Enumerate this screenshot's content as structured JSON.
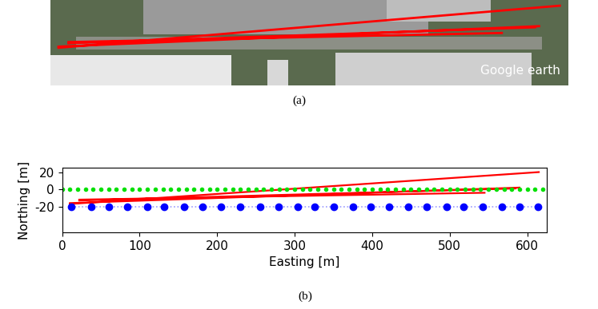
{
  "chart_data": [
    {
      "type": "image",
      "caption": "(a)",
      "watermark": "Google earth"
    },
    {
      "type": "line",
      "caption": "(b)",
      "x_label": "Easting [m]",
      "y_label": "Northing [m]",
      "xlim": [
        0,
        625
      ],
      "xticks": [
        0,
        100,
        200,
        300,
        400,
        500,
        600
      ],
      "ylim": [
        -50,
        25
      ],
      "yticks": [
        -20,
        0,
        20
      ],
      "grid": false,
      "series": [
        {
          "type": "line",
          "color": "#ff0000",
          "line_style": "solid",
          "x": [
            10,
            615,
            null,
            10,
            590,
            null,
            22,
            585,
            null,
            22,
            545
          ],
          "y": [
            -17,
            20,
            null,
            -16,
            2,
            null,
            -13,
            1,
            null,
            -12,
            -4
          ]
        },
        {
          "type": "scatter",
          "color": "#00e000",
          "marker": "o",
          "x": [
            0,
            10,
            20,
            30,
            40,
            50,
            60,
            70,
            80,
            90,
            100,
            110,
            120,
            130,
            140,
            150,
            160,
            170,
            180,
            190,
            200,
            210,
            220,
            230,
            240,
            250,
            260,
            270,
            280,
            290,
            300,
            310,
            320,
            330,
            340,
            350,
            360,
            370,
            380,
            390,
            400,
            410,
            420,
            430,
            440,
            450,
            460,
            470,
            480,
            490,
            500,
            510,
            520,
            530,
            540,
            550,
            560,
            570,
            580,
            590,
            600,
            610,
            620
          ],
          "y": [
            0,
            0,
            0,
            0,
            0,
            0,
            0,
            0,
            0,
            0,
            0,
            0,
            0,
            0,
            0,
            0,
            0,
            0,
            0,
            0,
            0,
            0,
            0,
            0,
            0,
            0,
            0,
            0,
            0,
            0,
            0,
            0,
            0,
            0,
            0,
            0,
            0,
            0,
            0,
            0,
            0,
            0,
            0,
            0,
            0,
            0,
            0,
            0,
            0,
            0,
            0,
            0,
            0,
            0,
            0,
            0,
            0,
            0,
            0,
            0,
            0,
            0,
            0
          ]
        },
        {
          "type": "line",
          "color": "#0000ff",
          "marker": "o",
          "line_style": "dotted",
          "x": [
            12,
            37,
            60,
            84,
            110,
            132,
            157,
            181,
            205,
            230,
            255,
            279,
            304,
            326,
            350,
            375,
            398,
            422,
            447,
            470,
            496,
            518,
            543,
            567,
            590,
            614
          ],
          "y": [
            -20,
            -20,
            -20,
            -20,
            -20,
            -20,
            -20,
            -20,
            -20,
            -20,
            -20,
            -20,
            -20,
            -20,
            -20,
            -20,
            -20,
            -20,
            -20,
            -20,
            -20,
            -20,
            -20,
            -20,
            -20,
            -20
          ]
        }
      ]
    }
  ]
}
